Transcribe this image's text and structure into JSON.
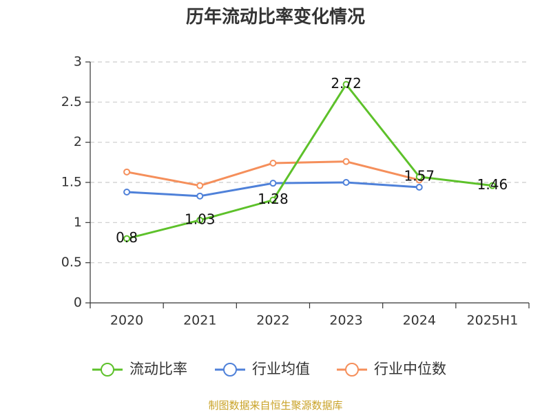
{
  "title": "历年流动比率变化情况",
  "source": "制图数据来自恒生聚源数据库",
  "colors": {
    "grid": "#cccccc",
    "axis": "#333333"
  },
  "chart_data": {
    "type": "line",
    "title": "历年流动比率变化情况",
    "categories": [
      "2020",
      "2021",
      "2022",
      "2023",
      "2024",
      "2025H1"
    ],
    "ylim": [
      0,
      3
    ],
    "yticks": [
      "0",
      "0.5",
      "1",
      "1.5",
      "2",
      "2.5",
      "3"
    ],
    "grid": "horizontal dashed",
    "legend_position": "bottom",
    "series": [
      {
        "name": "流动比率",
        "color": "#5dc12a",
        "values": [
          0.8,
          1.03,
          1.28,
          2.72,
          1.57,
          1.46
        ],
        "labels": [
          "0.8",
          "1.03",
          "1.28",
          "2.72",
          "1.57",
          "1.46"
        ],
        "show_labels": true
      },
      {
        "name": "行业均值",
        "color": "#4f81d9",
        "values": [
          1.38,
          1.33,
          1.49,
          1.5,
          1.44,
          null
        ],
        "show_labels": false
      },
      {
        "name": "行业中位数",
        "color": "#f58f5b",
        "values": [
          1.63,
          1.46,
          1.74,
          1.76,
          1.53,
          null
        ],
        "show_labels": false
      }
    ]
  }
}
